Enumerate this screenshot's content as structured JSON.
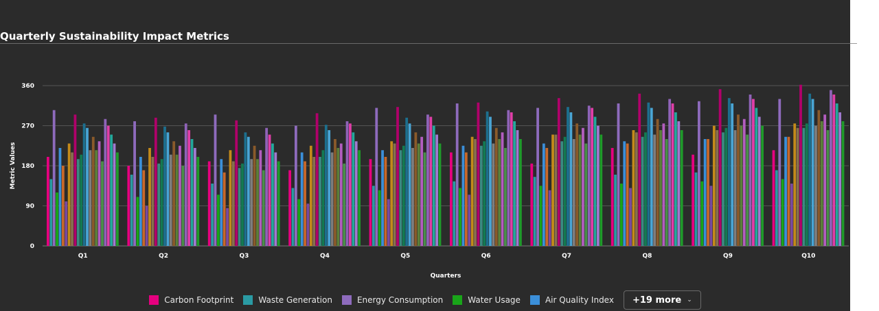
{
  "title": "Quarterly Sustainability Impact Metrics",
  "chart_data": {
    "type": "bar",
    "title": "Quarterly Sustainability Impact Metrics",
    "xlabel": "Quarters",
    "ylabel": "Metric Values",
    "ylim": [
      0,
      360
    ],
    "yticks": [
      0,
      90,
      180,
      270,
      360
    ],
    "grid": true,
    "legend_position": "bottom",
    "categories": [
      "Q1",
      "Q2",
      "Q3",
      "Q4",
      "Q5",
      "Q6",
      "Q7",
      "Q8",
      "Q9",
      "Q10"
    ],
    "series": [
      {
        "name": "Carbon Footprint",
        "color": "#e5007f",
        "values": [
          200,
          180,
          190,
          170,
          195,
          210,
          185,
          220,
          205,
          215
        ]
      },
      {
        "name": "Waste Generation",
        "color": "#2a9aa3",
        "values": [
          150,
          160,
          140,
          130,
          135,
          145,
          155,
          160,
          165,
          170
        ]
      },
      {
        "name": "Energy Consumption",
        "color": "#8e6bbd",
        "values": [
          305,
          280,
          295,
          270,
          310,
          320,
          310,
          320,
          325,
          330
        ]
      },
      {
        "name": "Water Usage",
        "color": "#19a519",
        "values": [
          120,
          110,
          115,
          105,
          125,
          130,
          135,
          140,
          145,
          150
        ]
      },
      {
        "name": "Air Quality Index",
        "color": "#3b8fd9",
        "values": [
          220,
          200,
          195,
          210,
          215,
          225,
          230,
          235,
          240,
          245
        ]
      },
      {
        "color": "#c8682a",
        "values": [
          180,
          170,
          165,
          190,
          200,
          210,
          220,
          230,
          240,
          245
        ]
      },
      {
        "color": "#7a4a9f",
        "values": [
          100,
          90,
          85,
          95,
          105,
          115,
          125,
          130,
          135,
          140
        ]
      },
      {
        "color": "#c48a1a",
        "values": [
          230,
          220,
          215,
          225,
          235,
          245,
          250,
          260,
          270,
          275
        ]
      },
      {
        "color": "#88704f",
        "values": [
          210,
          200,
          190,
          200,
          230,
          240,
          250,
          255,
          260,
          265
        ]
      },
      {
        "color": "#b0006a",
        "values": [
          295,
          288,
          282,
          298,
          312,
          322,
          332,
          342,
          352,
          362
        ]
      },
      {
        "color": "#3a8a82",
        "values": [
          195,
          185,
          175,
          200,
          215,
          225,
          235,
          245,
          255,
          265
        ]
      },
      {
        "color": "#137a52",
        "values": [
          205,
          195,
          185,
          215,
          225,
          235,
          245,
          255,
          265,
          275
        ]
      },
      {
        "color": "#1c6f8e",
        "values": [
          275,
          268,
          255,
          272,
          288,
          302,
          312,
          322,
          332,
          342
        ]
      },
      {
        "color": "#49a5d5",
        "values": [
          265,
          255,
          245,
          260,
          275,
          290,
          300,
          310,
          320,
          330
        ]
      },
      {
        "color": "#7e7e7e",
        "values": [
          215,
          205,
          195,
          210,
          220,
          230,
          240,
          250,
          260,
          270
        ]
      },
      {
        "color": "#8a5a2a",
        "values": [
          245,
          235,
          225,
          240,
          255,
          265,
          275,
          285,
          295,
          305
        ]
      },
      {
        "color": "#5c7f3a",
        "values": [
          215,
          205,
          195,
          220,
          230,
          240,
          250,
          260,
          270,
          280
        ]
      },
      {
        "color": "#b35dbf",
        "values": [
          235,
          225,
          215,
          230,
          245,
          255,
          265,
          275,
          285,
          295
        ]
      },
      {
        "color": "#4a8f4a",
        "values": [
          190,
          180,
          170,
          185,
          210,
          220,
          230,
          240,
          250,
          260
        ]
      },
      {
        "color": "#8f63b8",
        "values": [
          285,
          275,
          265,
          280,
          295,
          305,
          315,
          330,
          340,
          350
        ]
      },
      {
        "color": "#e03ea8",
        "values": [
          270,
          260,
          250,
          275,
          290,
          300,
          310,
          320,
          330,
          340
        ]
      },
      {
        "color": "#23a89c",
        "values": [
          250,
          240,
          230,
          255,
          270,
          280,
          290,
          300,
          310,
          320
        ]
      },
      {
        "color": "#a07ad0",
        "values": [
          230,
          220,
          210,
          235,
          250,
          260,
          270,
          280,
          290,
          300
        ]
      },
      {
        "color": "#1f9a2a",
        "values": [
          210,
          200,
          190,
          215,
          230,
          240,
          250,
          260,
          270,
          280
        ]
      }
    ]
  },
  "legend": {
    "items": [
      {
        "label": "Carbon Footprint",
        "color": "#e5007f"
      },
      {
        "label": "Waste Generation",
        "color": "#2a9aa3"
      },
      {
        "label": "Energy Consumption",
        "color": "#8e6bbd"
      },
      {
        "label": "Water Usage",
        "color": "#19a519"
      },
      {
        "label": "Air Quality Index",
        "color": "#3b8fd9"
      }
    ],
    "more_label": "+19 more"
  },
  "colors": {
    "background": "#2b2b2b",
    "grid": "#555555",
    "text": "#ffffff"
  }
}
